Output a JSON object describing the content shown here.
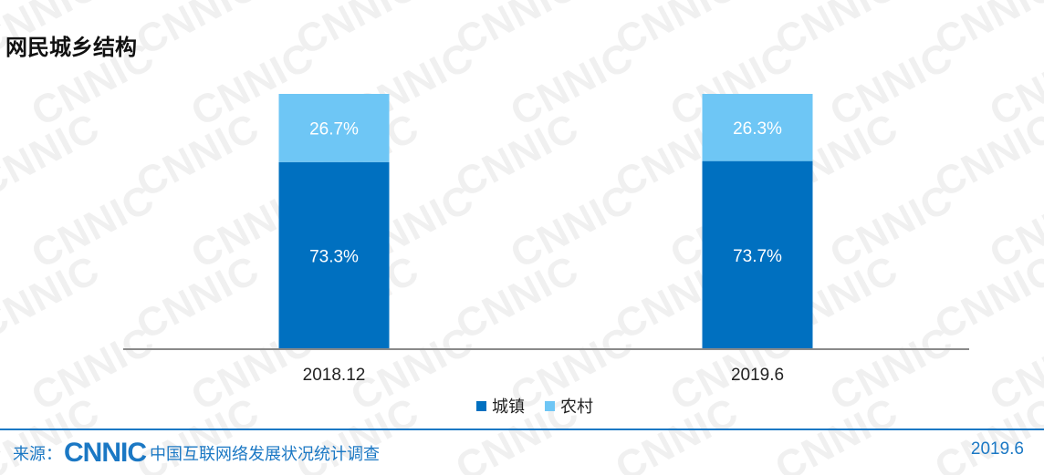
{
  "title": "网民城乡结构",
  "watermark": "CNNIC",
  "chart_data": {
    "type": "bar",
    "stacked": true,
    "categories": [
      "2018.12",
      "2019.6"
    ],
    "series": [
      {
        "name": "城镇",
        "values": [
          73.3,
          73.7
        ],
        "labels": [
          "73.3%",
          "73.7%"
        ],
        "color": "#0070c0"
      },
      {
        "name": "农村",
        "values": [
          26.7,
          26.3
        ],
        "labels": [
          "26.7%",
          "26.3%"
        ],
        "color": "#6ec6f5"
      }
    ],
    "ylim": [
      0,
      100
    ],
    "legend_position": "bottom",
    "grid": false
  },
  "footer": {
    "source_label": "来源：",
    "logo_text": "CNNIC",
    "source_text": "中国互联网络发展状况统计调查",
    "date": "2019.6"
  }
}
